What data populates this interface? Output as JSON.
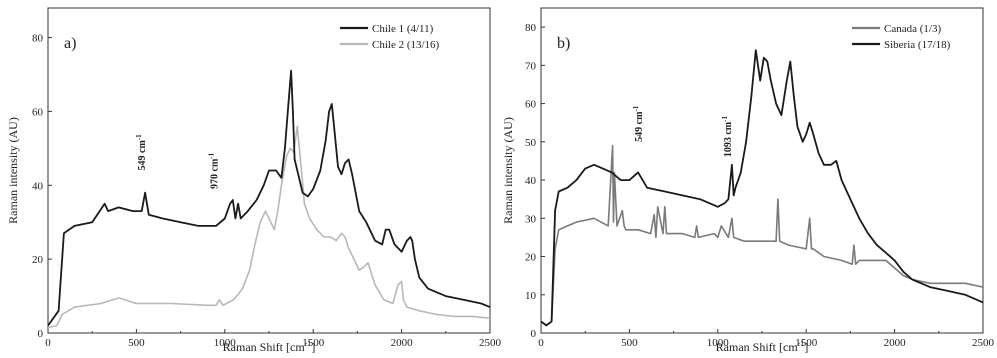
{
  "chart_data": [
    {
      "type": "line",
      "panel_label": "a)",
      "xlabel": "Raman Shift [cm",
      "xlabel_sup": "-1",
      "xlabel_end": "]",
      "ylabel": "Raman intensity (AU)",
      "xlim": [
        0,
        2500
      ],
      "ylim": [
        0,
        88
      ],
      "xticks": [
        0,
        500,
        1000,
        1500,
        2000,
        2500
      ],
      "yticks": [
        0,
        20,
        40,
        60,
        80
      ],
      "legend_position": "top-right",
      "annotations": [
        {
          "text": "549 cm",
          "sup": "-1",
          "x": 549,
          "y": 44
        },
        {
          "text": "970 cm",
          "sup": "-1",
          "x": 960,
          "y": 39
        }
      ],
      "series": [
        {
          "name": "Chile 1 (4/11)",
          "color": "#1a1a1a",
          "x": [
            0,
            60,
            90,
            150,
            250,
            320,
            340,
            400,
            480,
            530,
            549,
            570,
            650,
            750,
            850,
            950,
            1000,
            1030,
            1045,
            1060,
            1075,
            1090,
            1130,
            1180,
            1220,
            1250,
            1290,
            1320,
            1340,
            1360,
            1375,
            1385,
            1395,
            1410,
            1440,
            1470,
            1500,
            1540,
            1570,
            1590,
            1605,
            1620,
            1640,
            1660,
            1680,
            1700,
            1720,
            1760,
            1800,
            1850,
            1890,
            1910,
            1930,
            1960,
            2000,
            2030,
            2050,
            2060,
            2075,
            2100,
            2150,
            2250,
            2350,
            2450,
            2500
          ],
          "y": [
            2,
            6,
            27,
            29,
            30,
            35,
            33,
            34,
            33,
            33,
            38,
            32,
            31,
            30,
            29,
            29,
            31,
            35,
            36,
            31,
            35,
            31,
            33,
            36,
            40,
            44,
            44,
            42,
            50,
            62,
            71,
            60,
            47,
            44,
            38,
            37,
            39,
            44,
            52,
            60,
            62,
            55,
            45,
            43,
            46,
            47,
            43,
            33,
            30,
            25,
            24,
            28,
            28,
            24,
            22,
            25,
            26,
            25,
            20,
            15,
            12,
            10,
            9,
            8,
            7
          ]
        },
        {
          "name": "Chile 2 (13/16)",
          "color": "#b8b8b8",
          "x": [
            0,
            50,
            80,
            150,
            300,
            400,
            500,
            700,
            900,
            950,
            970,
            990,
            1050,
            1100,
            1140,
            1170,
            1200,
            1230,
            1260,
            1280,
            1300,
            1320,
            1350,
            1370,
            1390,
            1410,
            1430,
            1450,
            1480,
            1520,
            1560,
            1600,
            1630,
            1660,
            1680,
            1700,
            1730,
            1760,
            1790,
            1810,
            1850,
            1900,
            1950,
            1980,
            2000,
            2010,
            2030,
            2100,
            2200,
            2300,
            2400,
            2500
          ],
          "y": [
            1.5,
            2,
            5,
            7,
            8,
            9.5,
            8,
            8,
            7.5,
            7.5,
            9,
            7.5,
            9,
            12,
            17,
            24,
            30,
            33,
            30,
            28,
            33,
            40,
            48,
            50,
            49,
            56,
            46,
            35,
            31,
            28,
            26,
            26,
            25,
            27,
            26,
            23,
            20,
            17,
            18,
            19,
            13,
            9,
            8,
            13,
            14,
            9,
            7,
            6,
            5,
            4.5,
            4.5,
            4
          ]
        }
      ]
    },
    {
      "type": "line",
      "panel_label": "b)",
      "xlabel": "Raman Shift [cm",
      "xlabel_sup": "-1",
      "xlabel_end": "]",
      "ylabel": "Raman intensity (AU)",
      "xlim": [
        0,
        2500
      ],
      "ylim": [
        0,
        85
      ],
      "xticks": [
        0,
        500,
        1000,
        1500,
        2000,
        2500
      ],
      "yticks": [
        0,
        10,
        20,
        30,
        40,
        50,
        60,
        70,
        80
      ],
      "legend_position": "top-right",
      "annotations": [
        {
          "text": "549 cm",
          "sup": "-1",
          "x": 570,
          "y": 50
        },
        {
          "text": "1093 cm",
          "sup": "-1",
          "x": 1075,
          "y": 46
        }
      ],
      "series": [
        {
          "name": "Canada (1/3)",
          "color": "#7a7a7a",
          "x": [
            0,
            30,
            60,
            80,
            100,
            150,
            200,
            300,
            380,
            405,
            410,
            415,
            430,
            460,
            470,
            480,
            550,
            620,
            640,
            650,
            660,
            690,
            700,
            710,
            800,
            870,
            880,
            890,
            980,
            1000,
            1020,
            1060,
            1080,
            1090,
            1150,
            1200,
            1250,
            1330,
            1340,
            1350,
            1400,
            1500,
            1520,
            1530,
            1540,
            1600,
            1700,
            1760,
            1770,
            1780,
            1800,
            1900,
            1950,
            2000,
            2050,
            2100,
            2200,
            2300,
            2400,
            2500
          ],
          "y": [
            3,
            2,
            3,
            22,
            27,
            28,
            29,
            30,
            28,
            49,
            29,
            42,
            28,
            32,
            28,
            27,
            27,
            26,
            31,
            25,
            33,
            26,
            33,
            26,
            26,
            25,
            28,
            25,
            26,
            25,
            28,
            25,
            30,
            25,
            24,
            24,
            24,
            24,
            35,
            24,
            23,
            22,
            30,
            22,
            22,
            20,
            19,
            18,
            23,
            18,
            19,
            19,
            19,
            17,
            15,
            14,
            13,
            13,
            13,
            12
          ]
        },
        {
          "name": "Siberia (17/18)",
          "color": "#1a1a1a",
          "x": [
            0,
            30,
            60,
            80,
            100,
            150,
            200,
            250,
            300,
            350,
            400,
            450,
            500,
            549,
            600,
            700,
            800,
            900,
            1000,
            1040,
            1060,
            1080,
            1090,
            1100,
            1130,
            1160,
            1190,
            1215,
            1240,
            1260,
            1280,
            1300,
            1330,
            1360,
            1390,
            1410,
            1430,
            1450,
            1480,
            1500,
            1520,
            1540,
            1570,
            1600,
            1640,
            1670,
            1700,
            1750,
            1800,
            1850,
            1900,
            1950,
            2000,
            2050,
            2100,
            2200,
            2300,
            2400,
            2500
          ],
          "y": [
            3,
            2,
            3,
            32,
            37,
            38,
            40,
            43,
            44,
            43,
            42,
            40,
            40,
            42,
            38,
            37,
            36,
            35,
            33,
            34,
            35,
            44,
            36,
            38,
            42,
            50,
            62,
            74,
            66,
            72,
            71,
            66,
            60,
            57,
            66,
            71,
            62,
            54,
            50,
            52,
            55,
            52,
            47,
            44,
            44,
            45,
            40,
            35,
            30,
            26,
            23,
            21,
            19,
            16,
            14,
            12,
            11,
            10,
            8
          ]
        }
      ]
    }
  ]
}
